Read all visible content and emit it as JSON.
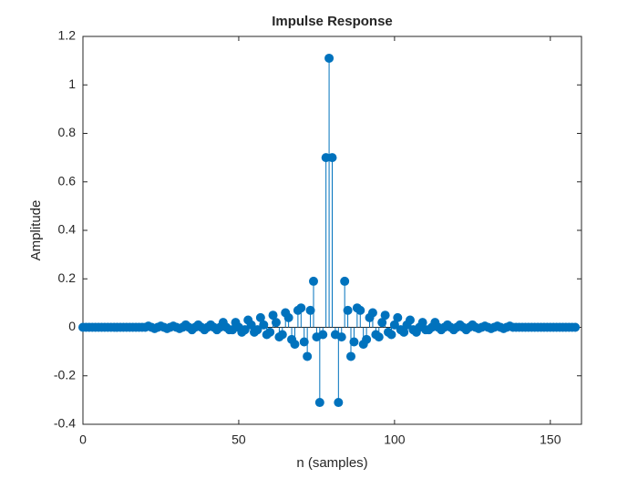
{
  "chart_data": {
    "type": "stem",
    "title": "Impulse Response",
    "x_label": "n (samples)",
    "y_label": "Amplitude",
    "x": [
      0,
      1,
      2,
      3,
      4,
      5,
      6,
      7,
      8,
      9,
      10,
      11,
      12,
      13,
      14,
      15,
      16,
      17,
      18,
      19,
      20,
      21,
      22,
      23,
      24,
      25,
      26,
      27,
      28,
      29,
      30,
      31,
      32,
      33,
      34,
      35,
      36,
      37,
      38,
      39,
      40,
      41,
      42,
      43,
      44,
      45,
      46,
      47,
      48,
      49,
      50,
      51,
      52,
      53,
      54,
      55,
      56,
      57,
      58,
      59,
      60,
      61,
      62,
      63,
      64,
      65,
      66,
      67,
      68,
      69,
      70,
      71,
      72,
      73,
      74,
      75,
      76,
      77,
      78,
      79,
      80,
      81,
      82,
      83,
      84,
      85,
      86,
      87,
      88,
      89,
      90,
      91,
      92,
      93,
      94,
      95,
      96,
      97,
      98,
      99,
      100,
      101,
      102,
      103,
      104,
      105,
      106,
      107,
      108,
      109,
      110,
      111,
      112,
      113,
      114,
      115,
      116,
      117,
      118,
      119,
      120,
      121,
      122,
      123,
      124,
      125,
      126,
      127,
      128,
      129,
      130,
      131,
      132,
      133,
      134,
      135,
      136,
      137,
      138,
      139,
      140,
      141,
      142,
      143,
      144,
      145,
      146,
      147,
      148,
      149,
      150,
      151,
      152,
      153,
      154,
      155,
      156,
      157,
      158
    ],
    "values": [
      0,
      0,
      0,
      0,
      0,
      0,
      0,
      0,
      0,
      0,
      0,
      0,
      0,
      0,
      0,
      0,
      0,
      0,
      0,
      0,
      0,
      0.005,
      0,
      -0.005,
      0,
      0.005,
      0,
      -0.005,
      0,
      0.005,
      0,
      -0.005,
      0,
      0.01,
      0,
      -0.01,
      0,
      0.01,
      0,
      -0.01,
      0,
      0.01,
      0,
      -0.01,
      0,
      0.02,
      0,
      -0.01,
      -0.01,
      0.02,
      0,
      -0.02,
      -0.01,
      0.03,
      0.01,
      -0.02,
      -0.01,
      0.04,
      0.01,
      -0.03,
      -0.02,
      0.05,
      0.02,
      -0.04,
      -0.03,
      0.06,
      0.04,
      -0.05,
      -0.07,
      0.07,
      0.08,
      -0.06,
      -0.12,
      0.07,
      0.19,
      -0.04,
      -0.31,
      -0.03,
      0.7,
      1.11,
      0.7,
      -0.03,
      -0.31,
      -0.04,
      0.19,
      0.07,
      -0.12,
      -0.06,
      0.08,
      0.07,
      -0.07,
      -0.05,
      0.04,
      0.06,
      -0.03,
      -0.04,
      0.02,
      0.05,
      -0.02,
      -0.03,
      0.01,
      0.04,
      -0.01,
      -0.02,
      0.01,
      0.03,
      -0.01,
      -0.02,
      0,
      0.02,
      -0.01,
      -0.01,
      0,
      0.02,
      0,
      -0.01,
      0,
      0.01,
      0,
      -0.01,
      0,
      0.01,
      0,
      -0.01,
      0,
      0.01,
      0,
      -0.005,
      0,
      0.005,
      0,
      -0.005,
      0,
      0.005,
      0,
      -0.005,
      0,
      0.005,
      0,
      0,
      0,
      0,
      0,
      0,
      0,
      0,
      0,
      0,
      0,
      0,
      0,
      0,
      0,
      0,
      0,
      0,
      0,
      0,
      0
    ],
    "color": "#0072bd",
    "xlim": [
      0,
      160
    ],
    "xticks": [
      0,
      50,
      100,
      150
    ],
    "ylim": [
      -0.4,
      1.2
    ],
    "yticks": [
      -0.4,
      -0.2,
      0,
      0.2,
      0.4,
      0.6,
      0.8,
      1,
      1.2
    ]
  }
}
